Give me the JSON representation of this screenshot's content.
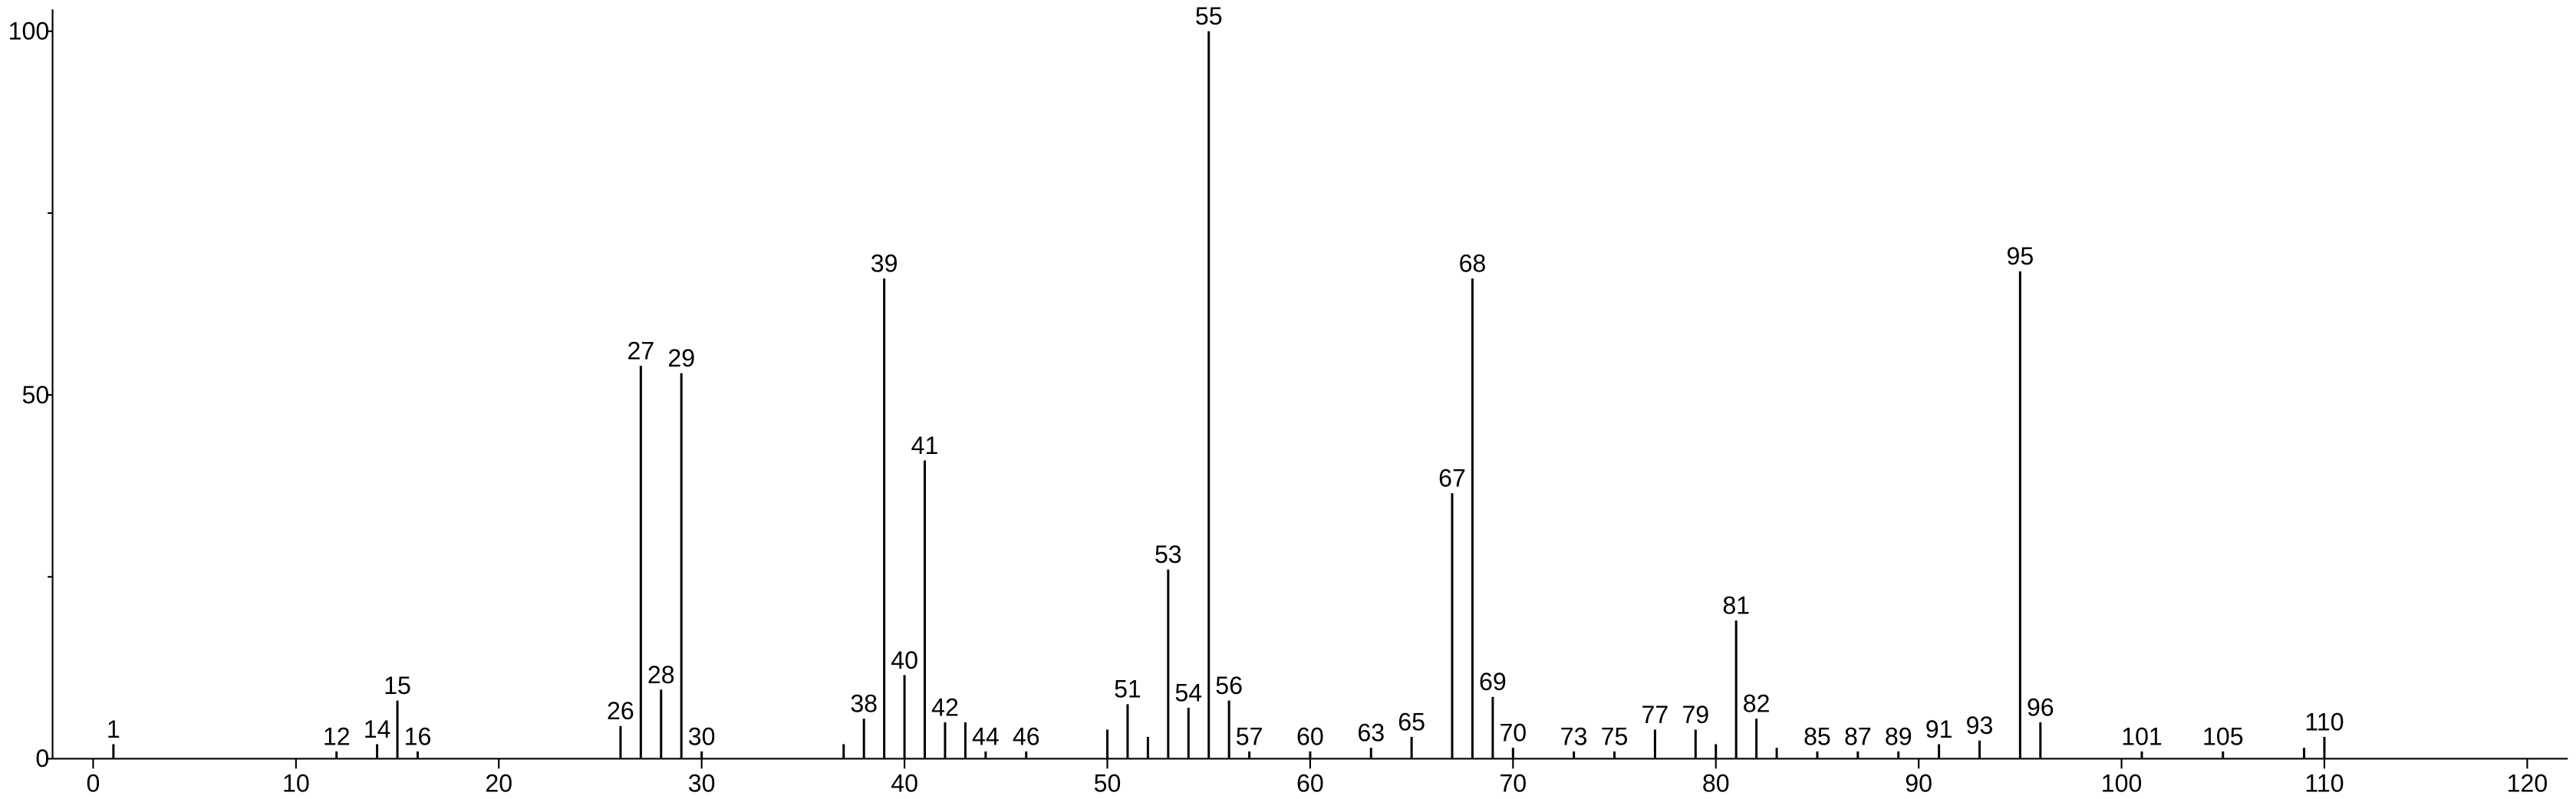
{
  "chart_data": {
    "type": "stem",
    "x": [
      1,
      12,
      14,
      15,
      16,
      26,
      27,
      28,
      29,
      30,
      37,
      38,
      39,
      40,
      41,
      42,
      43,
      44,
      46,
      50,
      51,
      52,
      53,
      54,
      55,
      56,
      57,
      60,
      63,
      65,
      67,
      68,
      69,
      70,
      73,
      75,
      77,
      79,
      80,
      81,
      82,
      83,
      85,
      87,
      89,
      91,
      93,
      95,
      96,
      101,
      105,
      109,
      110
    ],
    "values": [
      2,
      1,
      2,
      8,
      1,
      4.5,
      54,
      9.5,
      53,
      1,
      2,
      5.5,
      66,
      11.5,
      41,
      5,
      5,
      1,
      1,
      4,
      7.5,
      3,
      26,
      7,
      100,
      8,
      1,
      1,
      1.5,
      3,
      36.5,
      66,
      8.5,
      1.5,
      1,
      1,
      4,
      4,
      2,
      19,
      5.5,
      1.5,
      1,
      1,
      1,
      2,
      2.5,
      67,
      5,
      1,
      1,
      1.5,
      3
    ],
    "point_labels": [
      "1",
      "12",
      "14",
      "15",
      "16",
      "26",
      "27",
      "28",
      "29",
      "30",
      null,
      "38",
      "39",
      "40",
      "41",
      "42",
      null,
      "44",
      "46",
      null,
      "51",
      null,
      "53",
      "54",
      "55",
      "56",
      "57",
      "60",
      "63",
      "65",
      "67",
      "68",
      "69",
      "70",
      "73",
      "75",
      "77",
      "79",
      null,
      "81",
      "82",
      null,
      "85",
      "87",
      "89",
      "91",
      "93",
      "95",
      "96",
      "101",
      "105",
      null,
      "110"
    ],
    "color": "#000000",
    "xlim": [
      -2,
      122
    ],
    "xticks": [
      0,
      10,
      20,
      30,
      40,
      50,
      60,
      70,
      80,
      90,
      100,
      110,
      120
    ],
    "ylim": [
      0,
      103
    ],
    "yticks": [
      0,
      50,
      100
    ],
    "yminor": [
      25,
      75
    ]
  }
}
